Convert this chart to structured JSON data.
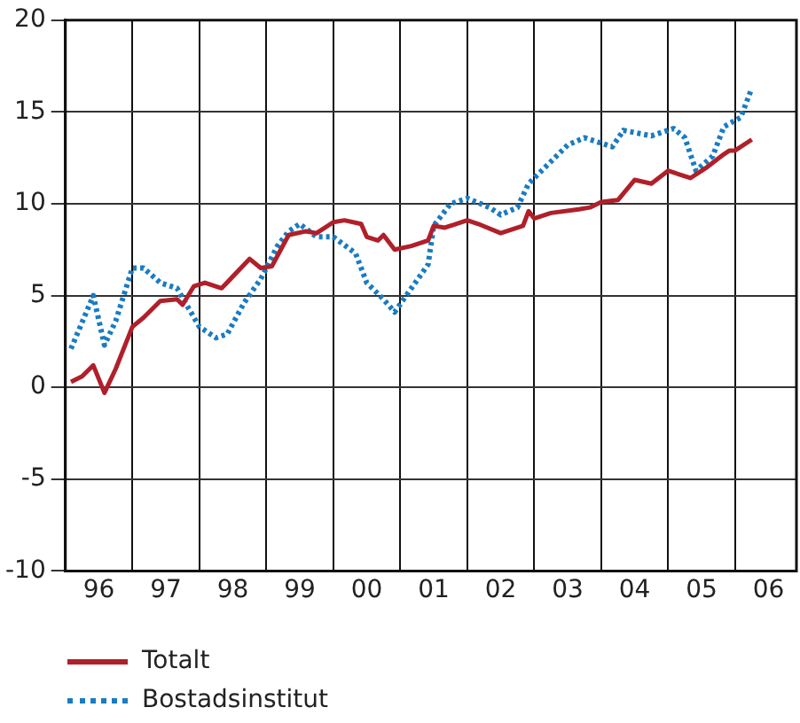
{
  "chart_data": {
    "type": "line",
    "legend": "bottom left",
    "grid": true,
    "xlim": [
      "1996-01",
      "2006-12"
    ],
    "ylim": [
      -10,
      20
    ],
    "yticks": [
      -10,
      -5,
      0,
      5,
      10,
      15,
      20
    ],
    "xticks": [
      {
        "value": "1996-07",
        "label": "96"
      },
      {
        "value": "1997-01",
        "label": null
      },
      {
        "value": "1997-07",
        "label": "97"
      },
      {
        "value": "1998-01",
        "label": null
      },
      {
        "value": "1998-07",
        "label": "98"
      },
      {
        "value": "1999-01",
        "label": null
      },
      {
        "value": "1999-07",
        "label": "99"
      },
      {
        "value": "2000-01",
        "label": null
      },
      {
        "value": "2000-07",
        "label": "00"
      },
      {
        "value": "2001-01",
        "label": null
      },
      {
        "value": "2001-07",
        "label": "01"
      },
      {
        "value": "2002-01",
        "label": null
      },
      {
        "value": "2002-07",
        "label": "02"
      },
      {
        "value": "2003-01",
        "label": null
      },
      {
        "value": "2003-07",
        "label": "03"
      },
      {
        "value": "2004-01",
        "label": null
      },
      {
        "value": "2004-07",
        "label": "04"
      },
      {
        "value": "2005-01",
        "label": null
      },
      {
        "value": "2005-07",
        "label": "05"
      },
      {
        "value": "2006-01",
        "label": null
      },
      {
        "value": "2006-07",
        "label": "06"
      }
    ],
    "series": [
      {
        "name": "Totalt",
        "color": "#b0202a",
        "line_style": "solid",
        "x": [
          "1996-02",
          "1996-04",
          "1996-06",
          "1996-08",
          "1996-10",
          "1997-01",
          "1997-03",
          "1997-06",
          "1997-09",
          "1997-10",
          "1997-12",
          "1998-02",
          "1998-05",
          "1998-10",
          "1998-12",
          "1999-02",
          "1999-05",
          "1999-08",
          "1999-10",
          "2000-01",
          "2000-03",
          "2000-06",
          "2000-07",
          "2000-09",
          "2000-10",
          "2000-12",
          "2001-03",
          "2001-06",
          "2001-07",
          "2001-09",
          "2002-01",
          "2002-03",
          "2002-07",
          "2002-11",
          "2002-12",
          "2003-01",
          "2003-04",
          "2003-09",
          "2003-11",
          "2004-01",
          "2004-04",
          "2004-07",
          "2004-10",
          "2005-01",
          "2005-05",
          "2005-08",
          "2005-11",
          "2005-12",
          "2006-01",
          "2006-04"
        ],
        "values": [
          0.3,
          0.6,
          1.2,
          -0.3,
          1.0,
          3.3,
          3.8,
          4.7,
          4.8,
          4.5,
          5.5,
          5.7,
          5.4,
          7.0,
          6.5,
          6.6,
          8.3,
          8.5,
          8.4,
          9.0,
          9.1,
          8.9,
          8.2,
          8.0,
          8.3,
          7.5,
          7.7,
          8.0,
          8.8,
          8.7,
          9.1,
          8.9,
          8.4,
          8.8,
          9.6,
          9.2,
          9.5,
          9.7,
          9.8,
          10.1,
          10.2,
          11.3,
          11.1,
          11.8,
          11.4,
          12.0,
          12.7,
          12.9,
          12.9,
          13.5
        ]
      },
      {
        "name": "Bostadsinstitut",
        "color": "#1a7cc1",
        "line_style": "dotted",
        "x": [
          "1996-02",
          "1996-06",
          "1996-08",
          "1996-10",
          "1997-01",
          "1997-03",
          "1997-06",
          "1997-09",
          "1998-01",
          "1998-04",
          "1998-06",
          "1998-09",
          "1998-12",
          "1999-03",
          "1999-05",
          "1999-07",
          "1999-10",
          "2000-01",
          "2000-05",
          "2000-07",
          "2000-10",
          "2000-12",
          "2001-03",
          "2001-06",
          "2001-07",
          "2001-10",
          "2002-01",
          "2002-05",
          "2002-07",
          "2002-10",
          "2002-12",
          "2003-03",
          "2003-07",
          "2003-10",
          "2004-03",
          "2004-05",
          "2004-10",
          "2005-02",
          "2005-04",
          "2005-06",
          "2005-09",
          "2005-11",
          "2006-02",
          "2006-04"
        ],
        "values": [
          2.1,
          5.0,
          2.3,
          3.6,
          6.5,
          6.5,
          5.7,
          5.4,
          3.3,
          2.7,
          2.9,
          4.6,
          5.9,
          7.7,
          8.5,
          8.9,
          8.2,
          8.2,
          7.3,
          5.7,
          4.8,
          4.1,
          5.4,
          6.7,
          8.8,
          10.0,
          10.3,
          9.8,
          9.4,
          9.8,
          11.1,
          12.0,
          13.2,
          13.6,
          13.1,
          14.0,
          13.7,
          14.1,
          13.6,
          11.8,
          12.6,
          14.2,
          14.7,
          16.3
        ]
      }
    ]
  }
}
